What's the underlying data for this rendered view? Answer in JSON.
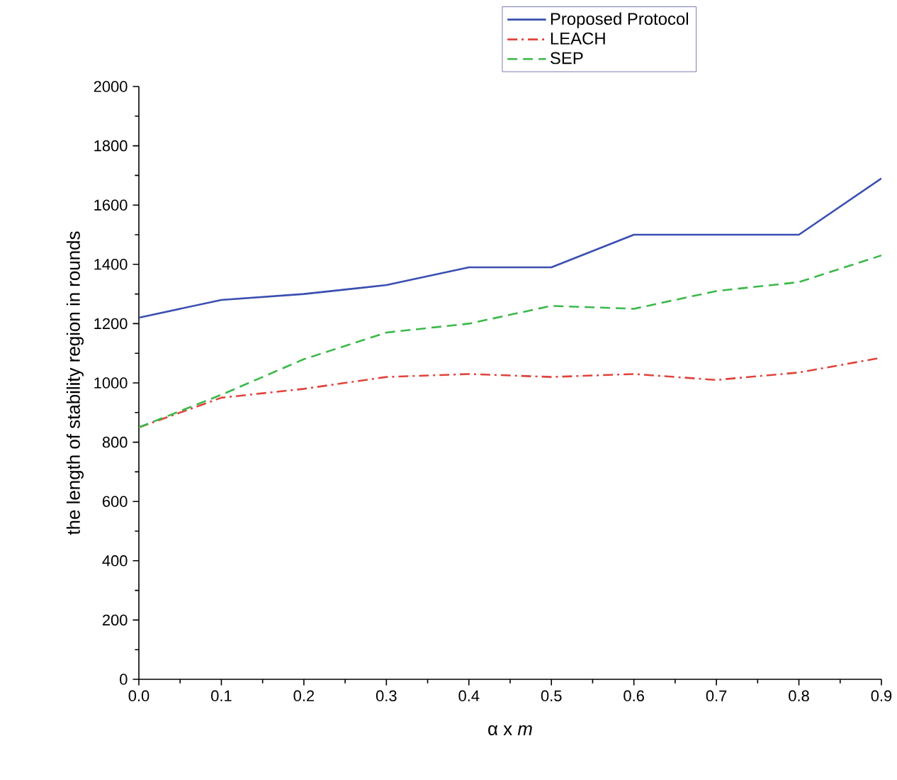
{
  "chart_data": {
    "type": "line",
    "xlabel": "α x *m*",
    "ylabel": "the length of stability region in rounds",
    "x": [
      0.0,
      0.1,
      0.2,
      0.3,
      0.4,
      0.5,
      0.6,
      0.7,
      0.8,
      0.9
    ],
    "series": [
      {
        "name": "Proposed Protocol",
        "color": "#3a4fb0",
        "line_style": "solid",
        "values": [
          1220,
          1280,
          1300,
          1330,
          1390,
          1390,
          1500,
          1500,
          1500,
          1690
        ]
      },
      {
        "name": "LEACH",
        "color": "#e0443c",
        "line_style": "dashdot",
        "values": [
          850,
          950,
          980,
          1020,
          1030,
          1020,
          1030,
          1010,
          1035,
          1085
        ]
      },
      {
        "name": "SEP",
        "color": "#3cb84a",
        "line_style": "dashed",
        "values": [
          850,
          960,
          1080,
          1170,
          1200,
          1260,
          1250,
          1310,
          1340,
          1430
        ]
      }
    ],
    "xlim": [
      0.0,
      0.9
    ],
    "ylim": [
      0,
      2000
    ],
    "xticks": [
      {
        "value": 0.0,
        "label": "0.0"
      },
      {
        "value": 0.1,
        "label": "0.1"
      },
      {
        "value": 0.2,
        "label": "0.2"
      },
      {
        "value": 0.3,
        "label": "0.3"
      },
      {
        "value": 0.4,
        "label": "0.4"
      },
      {
        "value": 0.5,
        "label": "0.5"
      },
      {
        "value": 0.6,
        "label": "0.6"
      },
      {
        "value": 0.7,
        "label": "0.7"
      },
      {
        "value": 0.8,
        "label": "0.8"
      },
      {
        "value": 0.9,
        "label": "0.9"
      }
    ],
    "yticks": [
      0,
      200,
      400,
      600,
      800,
      1000,
      1200,
      1400,
      1600,
      1800,
      2000
    ],
    "legend": "top",
    "grid": false,
    "marker": "none"
  }
}
